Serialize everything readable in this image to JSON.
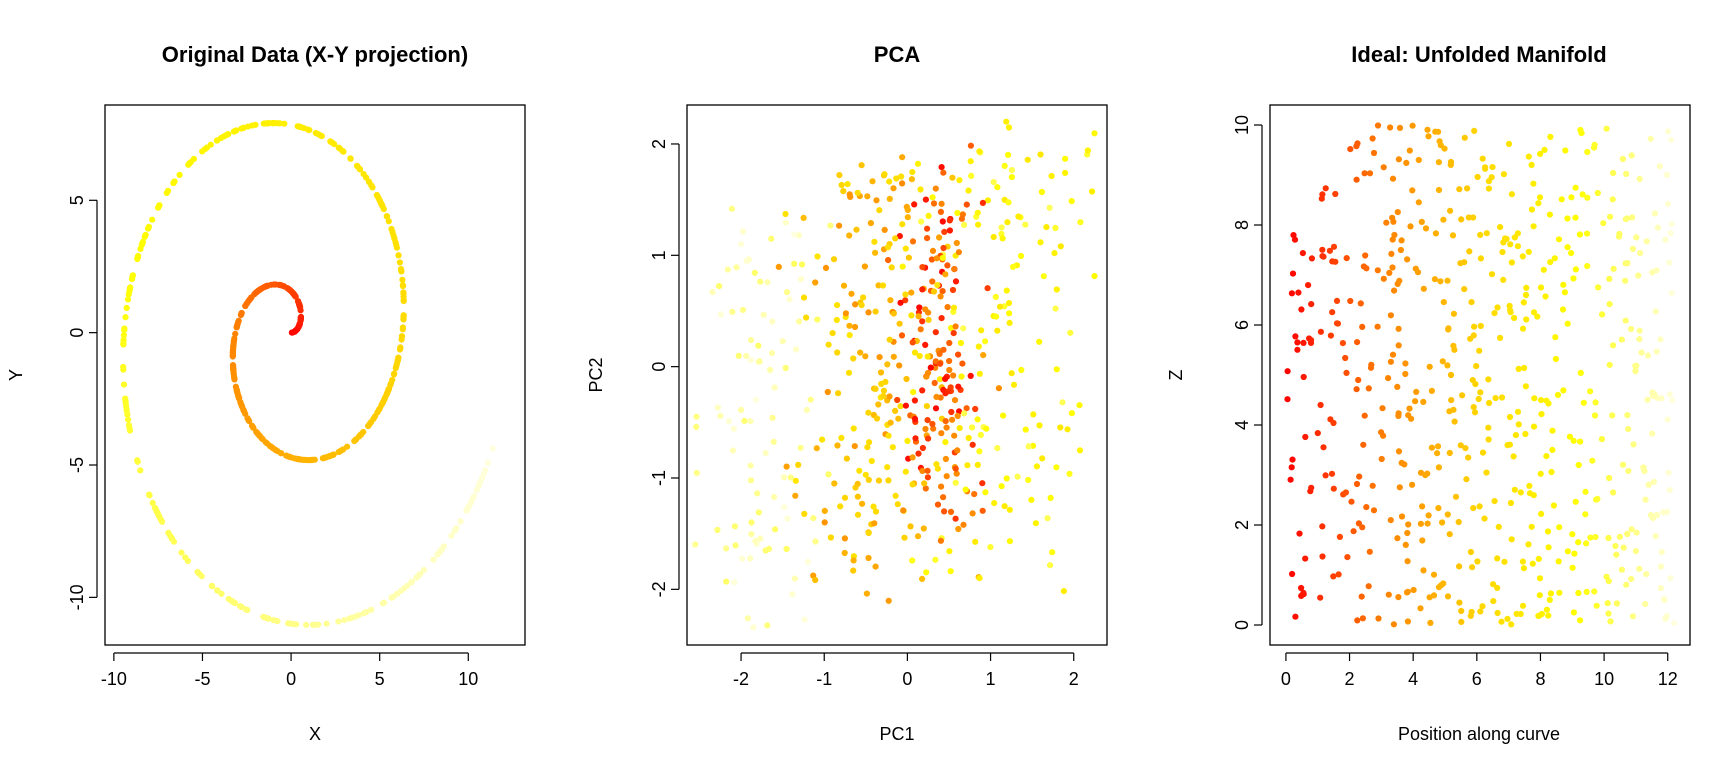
{
  "chart_data": [
    {
      "type": "scatter",
      "title": "Original Data (X-Y projection)",
      "xlabel": "X",
      "ylabel": "Y",
      "xlim": [
        -10.5,
        13.2
      ],
      "ylim": [
        -11.8,
        8.6
      ],
      "xticks": [
        -10,
        -5,
        0,
        5,
        10
      ],
      "yticks": [
        -10,
        -5,
        0,
        5
      ],
      "grid": false,
      "color_scale": [
        "#ff0000",
        "#ff7f00",
        "#ffd700",
        "#ffff00",
        "#ffffe0"
      ],
      "note_color_by": "position along curve",
      "series": [
        {
          "shape": "swiss-roll spiral x = t*cos(t), y = t*sin(t)",
          "t_range": [
            0.0,
            12.2
          ],
          "n_points": 600
        }
      ]
    },
    {
      "type": "scatter",
      "title": "PCA",
      "xlabel": "PC1",
      "ylabel": "PC2",
      "xlim": [
        -2.65,
        2.4
      ],
      "ylim": [
        -2.5,
        2.35
      ],
      "xticks": [
        -2,
        -1,
        0,
        1,
        2
      ],
      "yticks": [
        -2,
        -1,
        0,
        1,
        2
      ],
      "grid": false,
      "color_scale": [
        "#ff0000",
        "#ff7f00",
        "#ffd700",
        "#ffff00",
        "#ffffe0"
      ],
      "series": [
        {
          "shape": "points spread mostly in PC1 [-2.5, 2.2], PC2 [-2.3, 2.2]; red cluster near PC1 0.2-0.8",
          "n_points": 600
        }
      ]
    },
    {
      "type": "scatter",
      "title": "Ideal: Unfolded Manifold",
      "xlabel": "Position along curve",
      "ylabel": "Z",
      "xlim": [
        -0.5,
        12.7
      ],
      "ylim": [
        -0.4,
        10.4
      ],
      "xticks": [
        0,
        2,
        4,
        6,
        8,
        10,
        12
      ],
      "yticks": [
        0,
        2,
        4,
        6,
        8,
        10
      ],
      "grid": false,
      "color_scale": [
        "#ff0000",
        "#ff7f00",
        "#ffd700",
        "#ffff00",
        "#ffffe0"
      ],
      "series": [
        {
          "shape": "uniform points, x in [0, 12.2], z in [0, 10], colored by x",
          "n_points": 600
        }
      ]
    }
  ]
}
